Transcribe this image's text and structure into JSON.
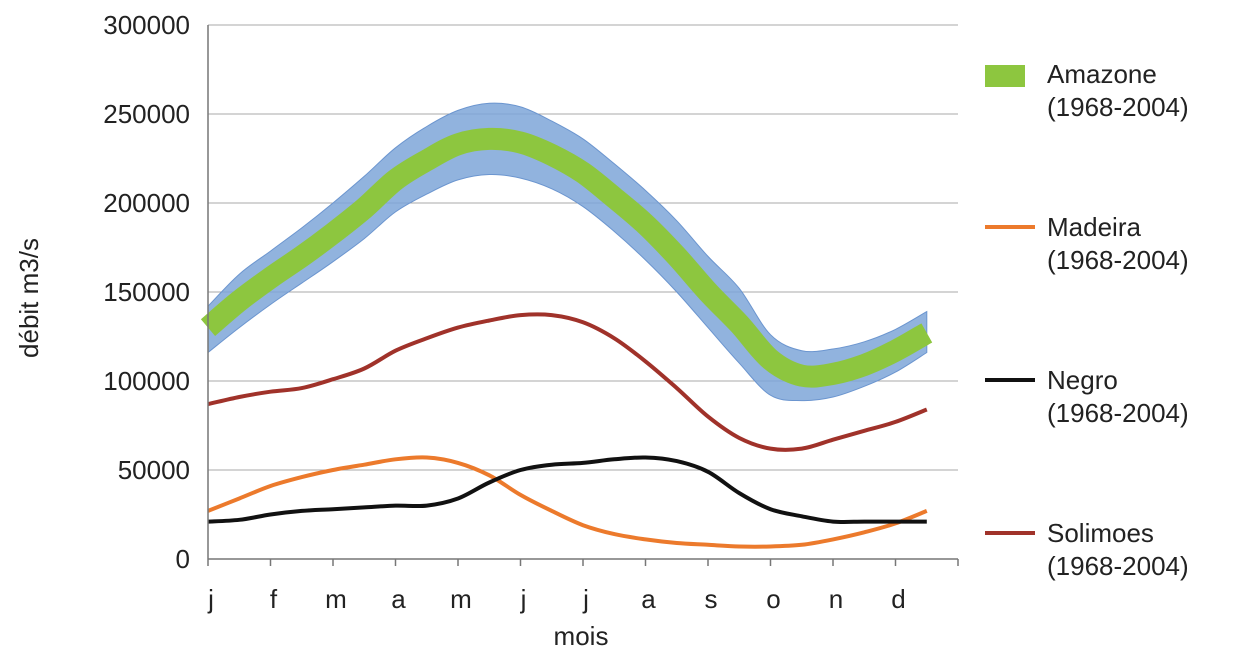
{
  "chart_data": {
    "type": "line",
    "xlabel": "mois",
    "ylabel": "débit m3/s",
    "ylim": [
      0,
      300000
    ],
    "yticks": [
      0,
      50000,
      100000,
      150000,
      200000,
      250000,
      300000
    ],
    "ytick_labels": [
      "0",
      "50000",
      "100000",
      "150000",
      "200000",
      "250000",
      "300000"
    ],
    "categories": [
      "j",
      "f",
      "m",
      "a",
      "m",
      "j",
      "j",
      "a",
      "s",
      "o",
      "n",
      "d"
    ],
    "grid": "horizontal",
    "legend_position": "right",
    "x": [
      0,
      0.5,
      1,
      1.5,
      2,
      2.5,
      3,
      3.5,
      4,
      4.5,
      5,
      5.5,
      6,
      6.5,
      7,
      7.5,
      8,
      8.5,
      9,
      9.5,
      10,
      10.5,
      11,
      11.5
    ],
    "series": [
      {
        "name": "Amazone",
        "period": "(1968-2004)",
        "color": "#8dc63f",
        "band_color": "#7ea6d8",
        "values": [
          130000,
          145000,
          158000,
          170000,
          183000,
          197000,
          213000,
          224000,
          233000,
          236000,
          234000,
          227000,
          217000,
          203000,
          188000,
          170000,
          150000,
          132000,
          112000,
          103000,
          104000,
          109000,
          117000,
          127000
        ],
        "band_lower": [
          116000,
          130000,
          143000,
          155000,
          167000,
          180000,
          195000,
          205000,
          213000,
          216000,
          214000,
          208000,
          198000,
          184000,
          168000,
          150000,
          130000,
          110000,
          92000,
          89000,
          91000,
          97000,
          105000,
          116000
        ],
        "band_upper": [
          142000,
          160000,
          173000,
          186000,
          200000,
          215000,
          231000,
          243000,
          252000,
          256000,
          254000,
          246000,
          236000,
          222000,
          207000,
          190000,
          170000,
          152000,
          126000,
          117000,
          118000,
          122000,
          129000,
          139000
        ]
      },
      {
        "name": "Madeira",
        "period": "(1968-2004)",
        "color": "#ec7a2c",
        "values": [
          27000,
          34000,
          41000,
          46000,
          50000,
          53000,
          56000,
          57000,
          54000,
          47000,
          36000,
          27000,
          19000,
          14000,
          11000,
          9000,
          8000,
          7000,
          7000,
          8000,
          11000,
          15000,
          20000,
          27000
        ]
      },
      {
        "name": "Negro",
        "period": "(1968-2004)",
        "color": "#111111",
        "values": [
          21000,
          22000,
          25000,
          27000,
          28000,
          29000,
          30000,
          30000,
          34000,
          43000,
          50000,
          53000,
          54000,
          56000,
          57000,
          55000,
          49000,
          37000,
          28000,
          24000,
          21000,
          21000,
          21000,
          21000
        ]
      },
      {
        "name": "Solimoes",
        "period": "(1968-2004)",
        "color": "#a0322a",
        "values": [
          87000,
          91000,
          94000,
          96000,
          101000,
          107000,
          117000,
          124000,
          130000,
          134000,
          137000,
          137000,
          133000,
          124000,
          111000,
          96000,
          80000,
          68000,
          62000,
          62000,
          67000,
          72000,
          77000,
          84000
        ]
      }
    ]
  }
}
